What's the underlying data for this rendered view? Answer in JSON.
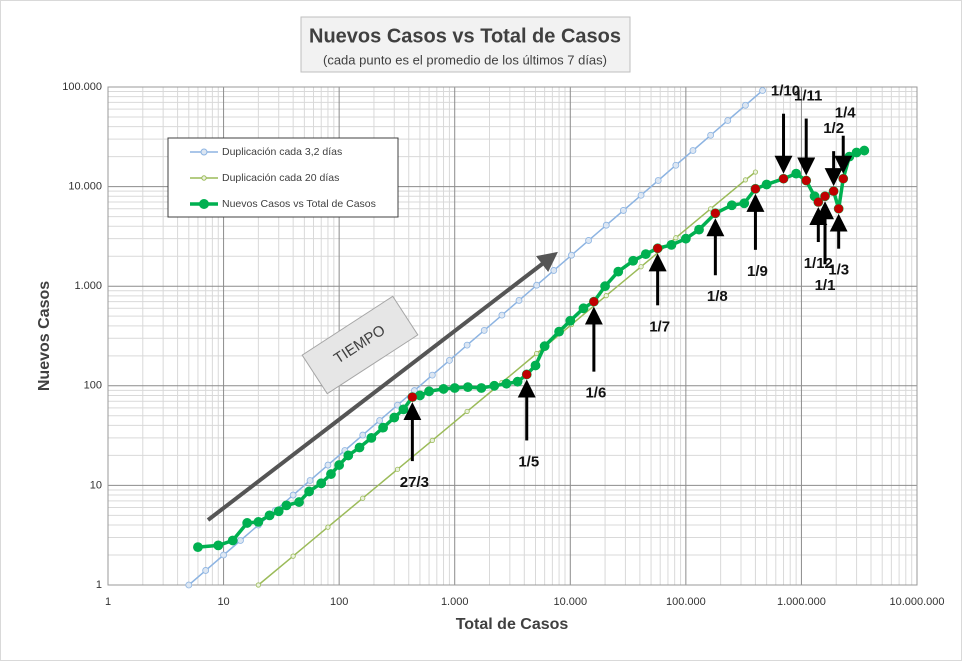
{
  "chart_data": {
    "type": "scatter",
    "title": "Nuevos Casos vs Total de Casos",
    "subtitle": "(cada punto es el promedio  de los últimos  7 días)",
    "x_label": "Total de Casos",
    "y_label": "Nuevos Casos",
    "x_scale": "log",
    "y_scale": "log",
    "grid": true,
    "legend": "upper left",
    "xlim": [
      1,
      10000000
    ],
    "ylim": [
      1,
      100000
    ],
    "xticks": [
      1,
      10,
      100,
      {
        "value": 1000,
        "label": "1.000"
      },
      {
        "value": 10000,
        "label": "10.000"
      },
      {
        "value": 100000,
        "label": "100.000"
      },
      {
        "value": 1000000,
        "label": "1.000.000"
      },
      {
        "value": 10000000,
        "label": "10.000.000"
      }
    ],
    "yticks": [
      1,
      10,
      100,
      {
        "value": 1000,
        "label": "1.000"
      },
      {
        "value": 10000,
        "label": "10.000"
      },
      {
        "value": 100000,
        "label": "100.000"
      }
    ],
    "series": [
      {
        "name": "Duplicación cada 3,2 días",
        "color": "#8db4e2",
        "x": [
          5,
          7,
          10,
          14,
          20,
          28,
          40,
          56,
          80,
          112,
          160,
          224,
          320,
          448,
          640,
          900,
          1280,
          1800,
          2560,
          3600,
          5120,
          7200,
          10240,
          14400,
          20480,
          28800,
          40960,
          57600,
          81920,
          115200,
          163840,
          230400,
          327680,
          460800
        ],
        "values": [
          1,
          1.4,
          2,
          2.8,
          4,
          5.6,
          8,
          11.2,
          16,
          22.4,
          32,
          44.8,
          64,
          89.6,
          128,
          180,
          256,
          360,
          512,
          720,
          1024,
          1440,
          2048,
          2880,
          4096,
          5760,
          8192,
          11520,
          16384,
          23040,
          32768,
          46080,
          65536,
          92160
        ]
      },
      {
        "name": "Duplicación cada 20 días",
        "color": "#9bbb59",
        "x": [
          20,
          40,
          80,
          160,
          320,
          640,
          1280,
          2560,
          5120,
          10240,
          20480,
          40960,
          81920,
          163840,
          327680,
          400000
        ],
        "values": [
          1,
          1.95,
          3.81,
          7.44,
          14.5,
          28.3,
          55.3,
          108,
          211,
          412,
          804,
          1569,
          3063,
          5980,
          11672,
          14000
        ]
      },
      {
        "name": "Nuevos Casos vs Total de Casos",
        "color": "#00b050",
        "x": [
          6,
          9,
          12,
          16,
          20,
          25,
          30,
          35,
          45,
          55,
          70,
          85,
          100,
          120,
          150,
          190,
          240,
          300,
          360,
          430,
          500,
          600,
          800,
          1000,
          1300,
          1700,
          2200,
          2800,
          3500,
          4200,
          5000,
          6000,
          8000,
          10000,
          13000,
          16000,
          20000,
          26000,
          35000,
          45000,
          57000,
          75000,
          100000,
          130000,
          180000,
          250000,
          320000,
          400000,
          500000,
          700000,
          900000,
          1100000,
          1300000,
          1400000,
          1600000,
          1900000,
          2100000,
          2300000,
          2600000,
          3000000,
          3500000
        ],
        "values": [
          2.4,
          2.5,
          2.8,
          4.2,
          4.3,
          5,
          5.5,
          6.3,
          6.8,
          8.7,
          10.5,
          13,
          16,
          20,
          24,
          30,
          38,
          48,
          58,
          77,
          80,
          88,
          93,
          95,
          97,
          95,
          100,
          105,
          110,
          130,
          160,
          250,
          350,
          450,
          600,
          700,
          1000,
          1400,
          1800,
          2100,
          2400,
          2600,
          3000,
          3700,
          5400,
          6500,
          6800,
          9500,
          10500,
          12000,
          13500,
          11500,
          8000,
          7000,
          8000,
          9000,
          6000,
          12000,
          20000,
          22000,
          23000
        ]
      }
    ],
    "highlight_color": "#c00000",
    "annotations": [
      {
        "text": "27/3",
        "x": 430,
        "y": 77
      },
      {
        "text": "1/5",
        "x": 4200,
        "y": 130
      },
      {
        "text": "1/6",
        "x": 16000,
        "y": 700
      },
      {
        "text": "1/7",
        "x": 57000,
        "y": 2400
      },
      {
        "text": "1/8",
        "x": 180000,
        "y": 5400
      },
      {
        "text": "1/9",
        "x": 400000,
        "y": 9500
      },
      {
        "text": "1/10",
        "x": 700000,
        "y": 12000
      },
      {
        "text": "1/11",
        "x": 1100000,
        "y": 11500
      },
      {
        "text": "1/12",
        "x": 1400000,
        "y": 7000
      },
      {
        "text": "1/1",
        "x": 1600000,
        "y": 8000
      },
      {
        "text": "1/2",
        "x": 1900000,
        "y": 9000
      },
      {
        "text": "1/3",
        "x": 2100000,
        "y": 6000
      },
      {
        "text": "1/4",
        "x": 2300000,
        "y": 12000
      }
    ],
    "time_label": "TIEMPO"
  }
}
